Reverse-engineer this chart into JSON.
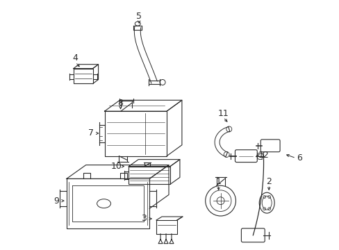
{
  "bg_color": "#ffffff",
  "line_color": "#2a2a2a",
  "font_size": 9,
  "fig_width": 4.89,
  "fig_height": 3.6,
  "dpi": 100
}
